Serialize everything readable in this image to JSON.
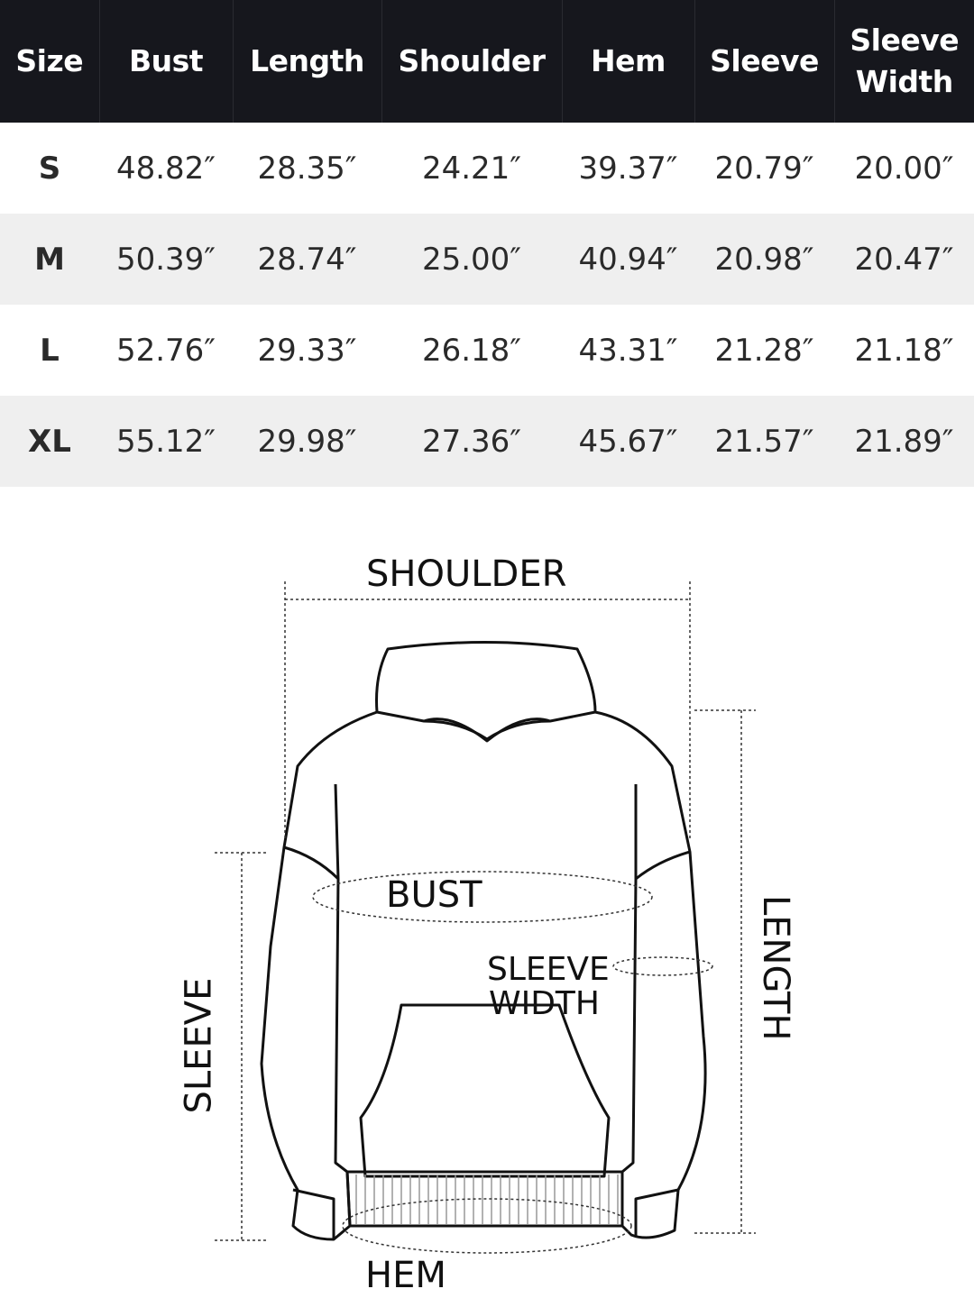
{
  "table": {
    "headers": [
      "Size",
      "Bust",
      "Length",
      "Shoulder",
      "Hem",
      "Sleeve",
      "Sleeve Width"
    ],
    "rows": [
      [
        "S",
        "48.82″",
        "28.35″",
        "24.21″",
        "39.37″",
        "20.79″",
        "20.00″"
      ],
      [
        "M",
        "50.39″",
        "28.74″",
        "25.00″",
        "40.94″",
        "20.98″",
        "20.47″"
      ],
      [
        "L",
        "52.76″",
        "29.33″",
        "26.18″",
        "43.31″",
        "21.28″",
        "21.18″"
      ],
      [
        "XL",
        "55.12″",
        "29.98″",
        "27.36″",
        "45.67″",
        "21.57″",
        "21.89″"
      ]
    ]
  },
  "diagram": {
    "shoulder": "SHOULDER",
    "bust": "BUST",
    "sleeve_width_1": "SLEEVE",
    "sleeve_width_2": "WIDTH",
    "length": "LENGTH",
    "sleeve": "SLEEVE",
    "hem": "HEM"
  },
  "colors": {
    "header_bg": "#16171d",
    "alt_row_bg": "#efefef"
  }
}
